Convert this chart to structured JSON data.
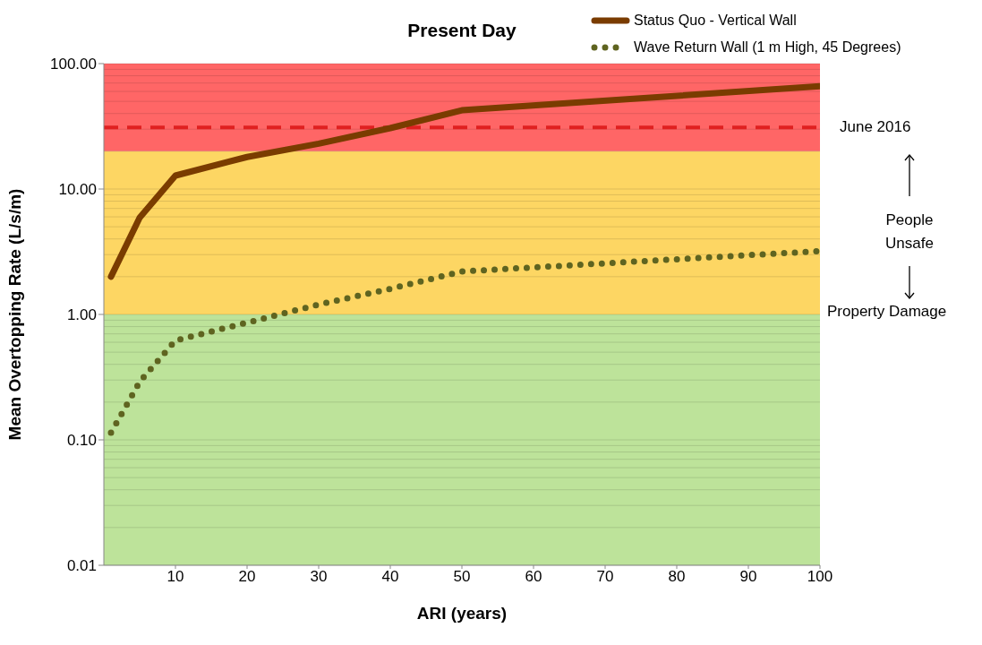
{
  "chart_data": {
    "type": "line",
    "title": "Present Day",
    "xlabel": "ARI (years)",
    "ylabel": "Mean Overtopping Rate (L/s/m)",
    "series": [
      {
        "name": "Status Quo - Vertical Wall",
        "color": "#7a3c00",
        "line_style": "solid",
        "x": [
          1,
          5,
          10,
          20,
          30,
          40,
          50,
          100
        ],
        "values": [
          2,
          5.9,
          12.8,
          18,
          23,
          30.6,
          42.5,
          66
        ]
      },
      {
        "name": "Wave Return Wall (1 m High, 45 Degrees)",
        "color": "#5f6420",
        "line_style": "dotted",
        "x": [
          1,
          5,
          10,
          20,
          30,
          40,
          50,
          100
        ],
        "values": [
          0.114,
          0.29,
          0.62,
          0.86,
          1.2,
          1.6,
          2.2,
          3.2
        ]
      }
    ],
    "xlim": [
      0,
      100
    ],
    "xticks": [
      10,
      20,
      30,
      40,
      50,
      60,
      70,
      80,
      90,
      100
    ],
    "ylim": [
      0.01,
      100
    ],
    "yticks": [
      {
        "value": 0.01,
        "label": "0.01"
      },
      {
        "value": 0.1,
        "label": "0.10"
      },
      {
        "value": 1,
        "label": "1.00"
      },
      {
        "value": 10,
        "label": "10.00"
      },
      {
        "value": 100,
        "label": "100.00"
      }
    ],
    "log": "y",
    "grid": "y",
    "legend": "top right",
    "marker": "none",
    "bands": [
      {
        "axis": "y",
        "from": 0.01,
        "to": 1,
        "color": "#bde39a"
      },
      {
        "axis": "y",
        "from": 1,
        "to": 20,
        "color": "#fdd663"
      },
      {
        "axis": "y",
        "from": 20,
        "to": 100,
        "color": "#ff6666"
      }
    ],
    "ref_lines": [
      {
        "axis": "y",
        "value": 31,
        "label": "June 2016",
        "color": "#e02020",
        "line_style": "dashed"
      }
    ],
    "annotations": [
      "People Unsafe",
      "Property Damage"
    ]
  }
}
